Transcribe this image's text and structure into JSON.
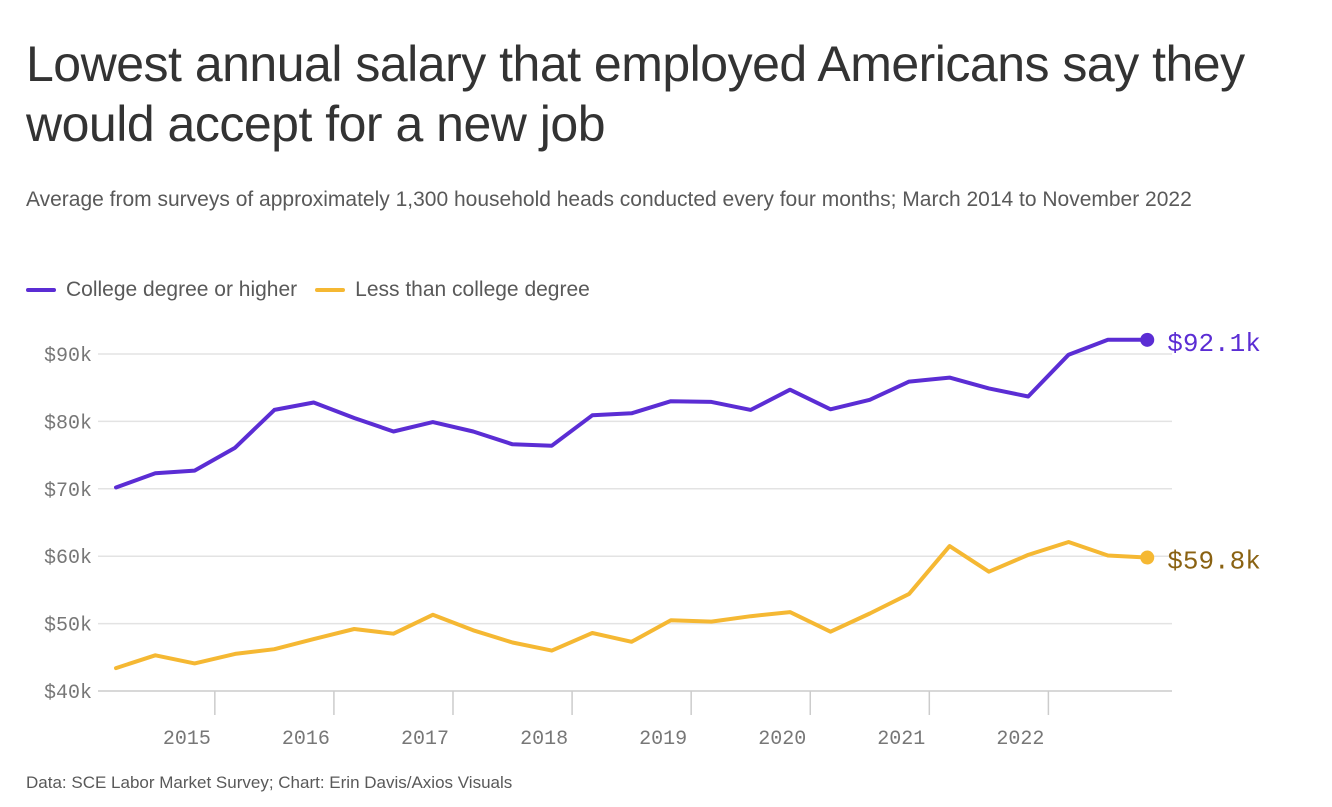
{
  "title": "Lowest annual salary that employed Americans say they would accept for a new job",
  "subtitle": "Average from surveys of approximately 1,300 household heads conducted every four months; March 2014 to November 2022",
  "footer": "Data: SCE Labor Market Survey; Chart: Erin Davis/Axios Visuals",
  "colors": {
    "college": "#5b2dd4",
    "less": "#f5b833",
    "less_label": "#8a6212",
    "grid": "#e3e3e3",
    "axis": "#cccccc"
  },
  "chart_data": {
    "type": "line",
    "title": "Lowest annual salary that employed Americans say they would accept for a new job",
    "xlabel": "",
    "ylabel": "",
    "x_unit": "year (decimal)",
    "y_unit": "thousand dollars",
    "xlim": [
      2014.17,
      2022.87
    ],
    "ylim": [
      40,
      92.1
    ],
    "x_ticks": [
      2015,
      2016,
      2017,
      2018,
      2019,
      2020,
      2021,
      2022
    ],
    "x_tick_labels": [
      "2015",
      "2016",
      "2017",
      "2018",
      "2019",
      "2020",
      "2021",
      "2022"
    ],
    "y_ticks": [
      40,
      50,
      60,
      70,
      80,
      90
    ],
    "y_tick_labels": [
      "$40k",
      "$50k",
      "$60k",
      "$70k",
      "$80k",
      "$90k"
    ],
    "grid": true,
    "legend": "top-left",
    "x": [
      2014.17,
      2014.5,
      2014.83,
      2015.17,
      2015.5,
      2015.83,
      2016.17,
      2016.5,
      2016.83,
      2017.17,
      2017.5,
      2017.83,
      2018.17,
      2018.5,
      2018.83,
      2019.17,
      2019.5,
      2019.83,
      2020.17,
      2020.5,
      2020.83,
      2021.17,
      2021.5,
      2021.83,
      2022.17,
      2022.5,
      2022.83
    ],
    "series": [
      {
        "name": "College degree or higher",
        "color": "#5b2dd4",
        "end_label": "$92.1k",
        "values": [
          70.2,
          72.3,
          72.7,
          76.1,
          81.7,
          82.8,
          80.5,
          78.5,
          79.9,
          78.5,
          76.6,
          76.4,
          80.9,
          81.2,
          83.0,
          82.9,
          81.7,
          84.7,
          81.8,
          83.2,
          85.9,
          86.5,
          84.9,
          83.7,
          89.9,
          92.1,
          92.1
        ]
      },
      {
        "name": "Less than college degree",
        "color": "#f5b833",
        "end_label": "$59.8k",
        "values": [
          43.4,
          45.3,
          44.1,
          45.5,
          46.2,
          47.7,
          49.2,
          48.5,
          51.3,
          49.0,
          47.2,
          46.0,
          48.6,
          47.3,
          50.5,
          50.3,
          51.1,
          51.7,
          48.8,
          51.5,
          54.4,
          61.5,
          57.7,
          60.2,
          62.1,
          60.1,
          59.8
        ]
      }
    ]
  }
}
